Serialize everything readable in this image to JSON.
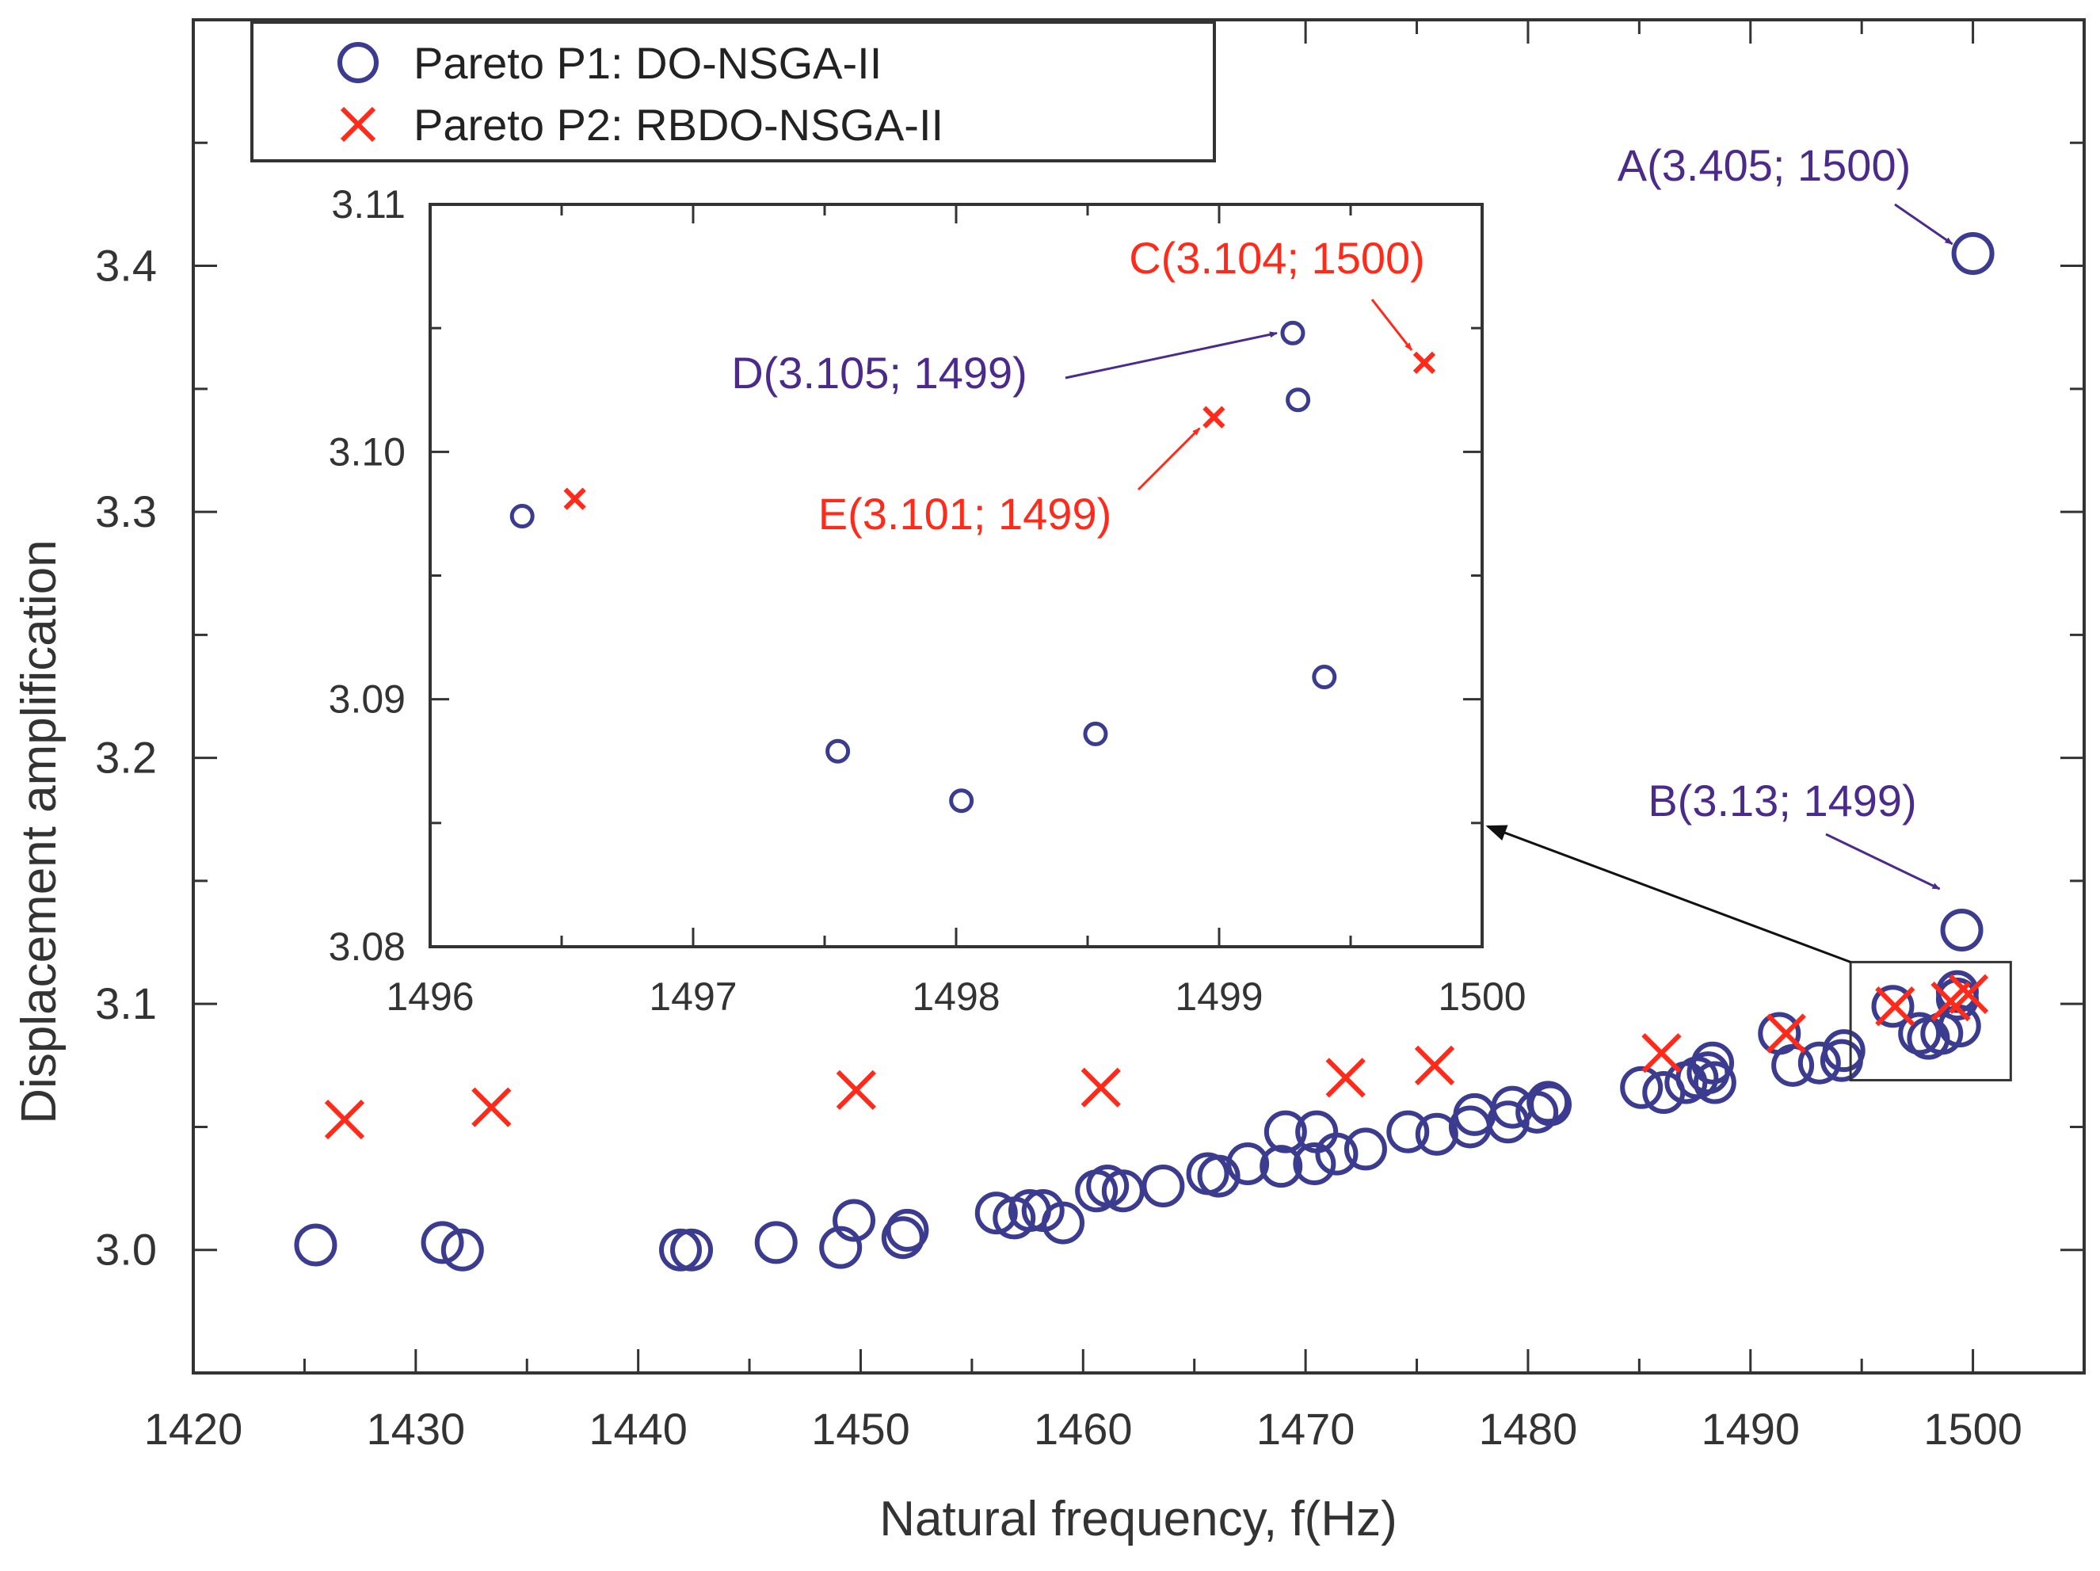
{
  "chart_data": {
    "type": "scatter",
    "xlabel": "Natural frequency, f(Hz)",
    "ylabel": "Displacement amplification",
    "xlim": [
      1420,
      1505
    ],
    "ylim": [
      2.95,
      3.5
    ],
    "x_ticks": [
      1420,
      1430,
      1440,
      1450,
      1460,
      1470,
      1480,
      1490,
      1500
    ],
    "y_ticks": [
      3.0,
      3.1,
      3.2,
      3.3,
      3.4
    ],
    "x_tick_labels": [
      "1420",
      "1430",
      "1440",
      "1450",
      "1460",
      "1470",
      "1480",
      "1490",
      "1500"
    ],
    "y_tick_labels": [
      "3.0",
      "3.1",
      "3.2",
      "3.3",
      "3.4"
    ],
    "grid": false,
    "legend_position": "top-left",
    "series": [
      {
        "name": "Pareto P1: DO-NSGA-II",
        "marker": "circle",
        "color": "#3b3b8f",
        "points": [
          [
            1425.5,
            3.002
          ],
          [
            1431.2,
            3.003
          ],
          [
            1432.1,
            3.0
          ],
          [
            1441.9,
            3.0
          ],
          [
            1442.4,
            3.0
          ],
          [
            1446.2,
            3.003
          ],
          [
            1449.1,
            3.001
          ],
          [
            1449.7,
            3.012
          ],
          [
            1451.9,
            3.005
          ],
          [
            1452.1,
            3.008
          ],
          [
            1456.1,
            3.015
          ],
          [
            1456.9,
            3.013
          ],
          [
            1457.6,
            3.016
          ],
          [
            1458.2,
            3.016
          ],
          [
            1459.1,
            3.011
          ],
          [
            1460.6,
            3.024
          ],
          [
            1461.1,
            3.026
          ],
          [
            1461.8,
            3.024
          ],
          [
            1463.6,
            3.026
          ],
          [
            1465.6,
            3.031
          ],
          [
            1466.1,
            3.03
          ],
          [
            1467.4,
            3.035
          ],
          [
            1468.9,
            3.034
          ],
          [
            1469.1,
            3.048
          ],
          [
            1470.4,
            3.035
          ],
          [
            1470.5,
            3.048
          ],
          [
            1471.4,
            3.039
          ],
          [
            1472.7,
            3.041
          ],
          [
            1474.6,
            3.048
          ],
          [
            1475.9,
            3.047
          ],
          [
            1477.4,
            3.05
          ],
          [
            1477.6,
            3.055
          ],
          [
            1479.1,
            3.052
          ],
          [
            1479.3,
            3.058
          ],
          [
            1480.4,
            3.056
          ],
          [
            1480.9,
            3.06
          ],
          [
            1481.0,
            3.059
          ],
          [
            1485.1,
            3.066
          ],
          [
            1486.1,
            3.064
          ],
          [
            1487.1,
            3.068
          ],
          [
            1487.6,
            3.07
          ],
          [
            1488.1,
            3.072
          ],
          [
            1488.3,
            3.076
          ],
          [
            1488.4,
            3.068
          ],
          [
            1491.3,
            3.088
          ],
          [
            1491.9,
            3.075
          ],
          [
            1493.1,
            3.076
          ],
          [
            1494.1,
            3.077
          ],
          [
            1494.2,
            3.081
          ],
          [
            1496.4,
            3.099
          ],
          [
            1497.6,
            3.088
          ],
          [
            1498.0,
            3.086
          ],
          [
            1498.6,
            3.088
          ],
          [
            1499.3,
            3.105
          ],
          [
            1499.3,
            3.102
          ],
          [
            1499.4,
            3.091
          ],
          [
            1499.5,
            3.13
          ],
          [
            1500.0,
            3.405
          ]
        ]
      },
      {
        "name": "Pareto P2: RBDO-NSGA-II",
        "marker": "x",
        "color": "#ff2a1a",
        "points": [
          [
            1426.8,
            3.053
          ],
          [
            1433.4,
            3.058
          ],
          [
            1449.8,
            3.065
          ],
          [
            1460.8,
            3.066
          ],
          [
            1471.8,
            3.07
          ],
          [
            1475.8,
            3.075
          ],
          [
            1486.0,
            3.08
          ],
          [
            1491.6,
            3.088
          ],
          [
            1496.5,
            3.099
          ],
          [
            1499.0,
            3.101
          ],
          [
            1499.8,
            3.104
          ]
        ]
      }
    ],
    "annotations": [
      {
        "text": "A(3.405; 1500)",
        "color": "#4b2a8c",
        "x": 1500,
        "y": 3.405
      },
      {
        "text": "B(3.13; 1499)",
        "color": "#4b2a8c",
        "x": 1499.5,
        "y": 3.13
      }
    ],
    "inset": {
      "xlim": [
        1496,
        1500
      ],
      "ylim": [
        3.08,
        3.11
      ],
      "x_ticks": [
        1496,
        1497,
        1498,
        1499,
        1500
      ],
      "y_ticks": [
        3.08,
        3.09,
        3.1,
        3.11
      ],
      "x_tick_labels": [
        "1496",
        "1497",
        "1498",
        "1499",
        "1500"
      ],
      "y_tick_labels": [
        "3.08",
        "3.09",
        "3.10",
        "3.11"
      ],
      "source_box": {
        "xlim": [
          1494.5,
          1501.7
        ],
        "ylim": [
          3.069,
          3.117
        ]
      },
      "points_p1": [
        [
          1496.35,
          3.0974
        ],
        [
          1497.55,
          3.0879
        ],
        [
          1498.02,
          3.0859
        ],
        [
          1498.53,
          3.0886
        ],
        [
          1499.28,
          3.1048
        ],
        [
          1499.3,
          3.1021
        ],
        [
          1499.4,
          3.0909
        ]
      ],
      "points_p2": [
        [
          1496.55,
          3.0981
        ],
        [
          1498.98,
          3.1014
        ],
        [
          1499.78,
          3.1036
        ]
      ],
      "annotations": [
        {
          "text": "C(3.104; 1500)",
          "color": "#ff2a1a",
          "x": 1499.78,
          "y": 3.1036
        },
        {
          "text": "D(3.105; 1499)",
          "color": "#4b2a8c",
          "x": 1499.28,
          "y": 3.1048
        },
        {
          "text": "E(3.101; 1499)",
          "color": "#ff2a1a",
          "x": 1498.98,
          "y": 3.1014
        }
      ]
    }
  }
}
